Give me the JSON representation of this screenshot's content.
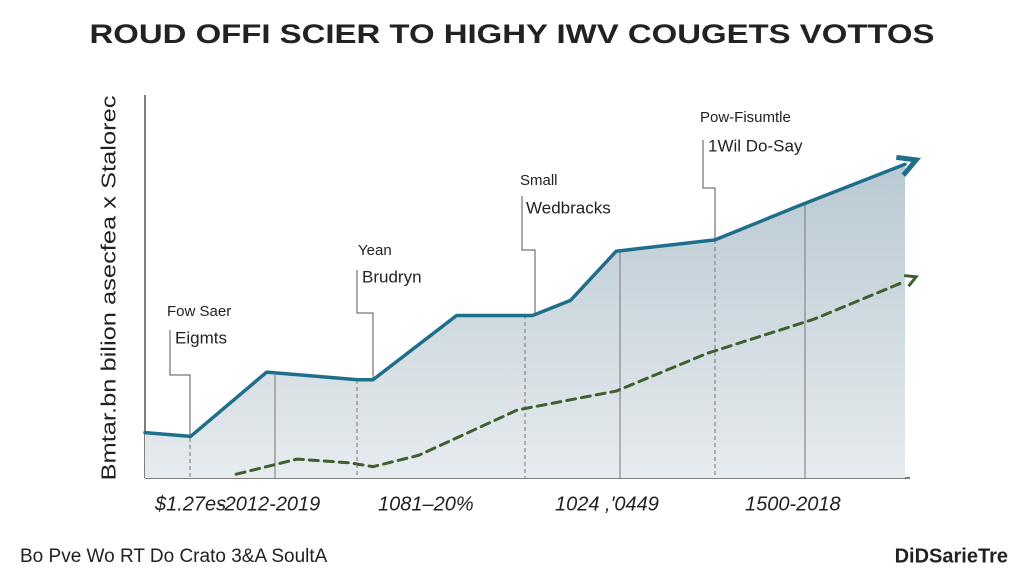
{
  "chart_data": {
    "type": "line",
    "title": "ROUD OFFI SCIER TO HIGHY IWV COUGETS VOTTOS",
    "y_label": "Bmtar.bn bilion asecfea x Stalorec",
    "xlim": [
      0,
      100
    ],
    "ylim": [
      0,
      100
    ],
    "series": [
      {
        "color": "#1f6f8b",
        "style": "solid",
        "x": [
          0,
          6,
          16,
          28,
          30,
          41,
          51,
          56,
          62,
          75,
          86,
          100
        ],
        "values": [
          12,
          11,
          28,
          26,
          26,
          43,
          43,
          47,
          60,
          63,
          72,
          83
        ]
      },
      {
        "color": "#3f5f30",
        "style": "dashed",
        "x": [
          12,
          20,
          27,
          30,
          36,
          49,
          62,
          74,
          88,
          100
        ],
        "values": [
          1,
          5,
          4,
          3,
          6,
          18,
          23,
          33,
          42,
          52
        ]
      }
    ],
    "annotations": [
      {
        "top": "Fow Saer",
        "bottom": "Eigmts"
      },
      {
        "top": "Yean",
        "bottom": "Brudryn"
      },
      {
        "top": "Small",
        "bottom": "Wedbracks"
      },
      {
        "top": "Pow-Fisumtle",
        "bottom": "1Wil Do-Say"
      }
    ],
    "x_labels": [
      "$1.27es",
      "-2012-2019",
      "1081–20%",
      "1024 ,'0449",
      "1500-2018"
    ],
    "footer": {
      "left": "Bo Pve Wo RT Do Crato 3&A SoultA",
      "right": "DiDSarieTre"
    }
  }
}
